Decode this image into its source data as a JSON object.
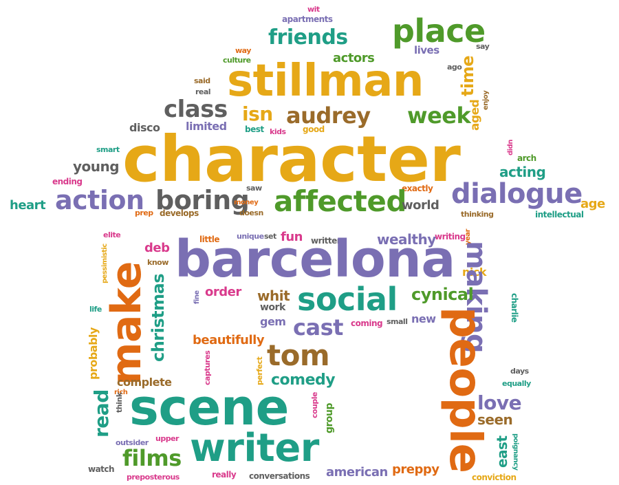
{
  "palette": {
    "gold": "#e6a817",
    "purple": "#7a6fb3",
    "green": "#4f9a2a",
    "teal": "#1f9e86",
    "orange": "#e06a13",
    "gray": "#5f5f5f",
    "brown": "#9a6b2a",
    "pink": "#d93a8c"
  },
  "words": {
    "character": "character",
    "barcelona": "barcelona",
    "stillman": "stillman",
    "scene": "scene",
    "writer": "writer",
    "people": "people",
    "make": "make",
    "social": "social",
    "place": "place",
    "friends": "friends",
    "affected": "affected",
    "dialogue": "dialogue",
    "action": "action",
    "boring": "boring",
    "class": "class",
    "audrey": "audrey",
    "isn": "isn",
    "week": "week",
    "tom": "tom",
    "making": "making",
    "films": "films",
    "christmas": "christmas",
    "cast": "cast",
    "comedy": "comedy",
    "love": "love",
    "read": "read",
    "cynical": "cynical",
    "actors": "actors",
    "time": "time",
    "aged": "aged",
    "young": "young",
    "acting": "acting",
    "heart": "heart",
    "world": "world",
    "age": "age",
    "disco": "disco",
    "limited": "limited",
    "lives": "lives",
    "wit": "wit",
    "apartments": "apartments",
    "way": "way",
    "culture": "culture",
    "said": "said",
    "real": "real",
    "say": "say",
    "ago": "ago",
    "enjoy": "enjoy",
    "best": "best",
    "kids": "kids",
    "good": "good",
    "smart": "smart",
    "ending": "ending",
    "didn": "didn",
    "arch": "arch",
    "saw": "saw",
    "money": "money",
    "doesn": "doesn",
    "exactly": "exactly",
    "thinking": "thinking",
    "prep": "prep",
    "develops": "develops",
    "intellectual": "intellectual",
    "elite": "elite",
    "little": "little",
    "unique": "unique",
    "set": "set",
    "fun": "fun",
    "written": "written",
    "wealthy": "wealthy",
    "writing": "writing",
    "year": "year",
    "deb": "deb",
    "know": "know",
    "pessimistic": "pessimistic",
    "nick": "nick",
    "fine": "fine",
    "order": "order",
    "whit": "whit",
    "work": "work",
    "charlie": "charlie",
    "life": "life",
    "gem": "gem",
    "coming": "coming",
    "small": "small",
    "new": "new",
    "probably": "probably",
    "beautifully": "beautifully",
    "captures": "captures",
    "perfect": "perfect",
    "days": "days",
    "complete": "complete",
    "equally": "equally",
    "rich": "rich",
    "think": "think",
    "couple": "couple",
    "group": "group",
    "seen": "seen",
    "outsider": "outsider",
    "upper": "upper",
    "poignancy": "poignancy",
    "east": "east",
    "watch": "watch",
    "really": "really",
    "conversations": "conversations",
    "american": "american",
    "preppy": "preppy",
    "preposterous": "preposterous",
    "conviction": "conviction"
  }
}
